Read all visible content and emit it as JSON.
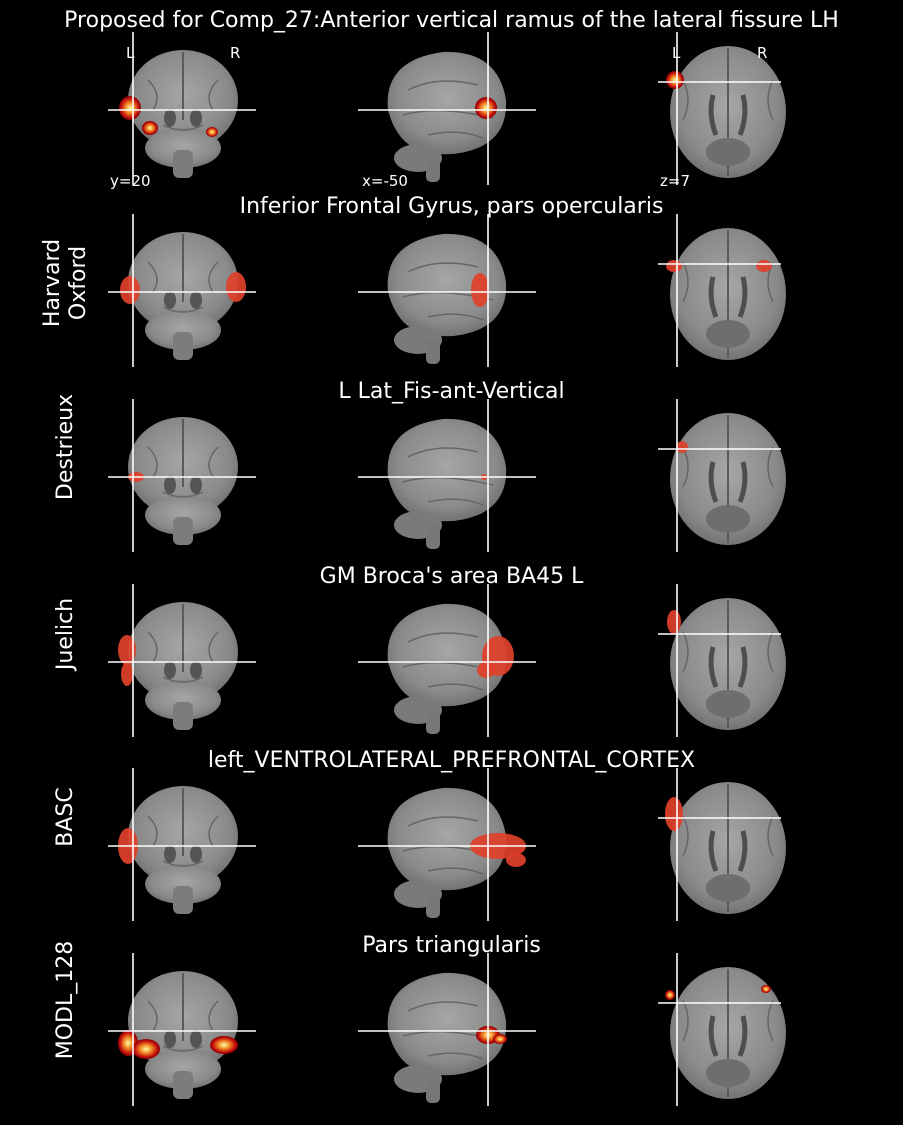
{
  "title": "Proposed for Comp_27:Anterior vertical ramus of the lateral fissure LH",
  "orientation": {
    "left": "L",
    "right": "R"
  },
  "coords": {
    "coronal": "y=20",
    "sagittal": "x=-50",
    "axial": "z=7"
  },
  "rows": [
    {
      "atlas": "",
      "region": "",
      "overlay": "heat"
    },
    {
      "atlas": "Harvard\nOxford",
      "region": "Inferior Frontal Gyrus, pars opercularis",
      "overlay": "red"
    },
    {
      "atlas": "Destrieux",
      "region": "L Lat_Fis-ant-Vertical",
      "overlay": "red"
    },
    {
      "atlas": "Juelich",
      "region": "GM Broca's area BA45 L",
      "overlay": "red"
    },
    {
      "atlas": "BASC",
      "region": "left_VENTROLATERAL_PREFRONTAL_CORTEX",
      "overlay": "red"
    },
    {
      "atlas": "MODL_128",
      "region": "Pars triangularis",
      "overlay": "heat"
    }
  ],
  "colors": {
    "background": "#000000",
    "overlay_red": "#e0402a",
    "heat_core": "#ffffa0",
    "heat_mid": "#f08020",
    "heat_edge": "#8a0000",
    "crosshair": "#ffffff"
  }
}
